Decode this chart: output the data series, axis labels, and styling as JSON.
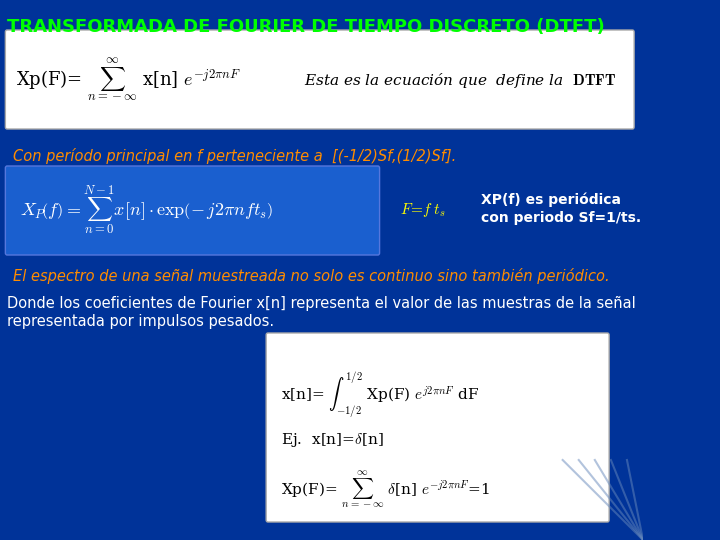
{
  "title": "TRANSFORMADA DE FOURIER DE TIEMPO DISCRETO (DTFT)",
  "title_color": "#00FF00",
  "title_fontsize": 13,
  "bg_color": "#003399",
  "box1_bg": "#FFFFFF",
  "box2_bg": "#1a5fcf",
  "orange_text_color": "#FF8C00",
  "white_text_color": "#FFFFFF",
  "yellow_text_color": "#FFFF00",
  "eq1_text": "Xp(F)=   $\\sum_{n=-\\infty}^{\\infty}$  x[n] $e^{-j2\\pi nF}$       Esta es la ecuación que  define la  DTFT",
  "line_period": "Con período principal en f perteneciente a  [(-1/2)Sf,(1/2)Sf].",
  "eq2_label": "F= f ts",
  "eq2_right1": "XP(f) es periódica",
  "eq2_right2": "con periodo Sf=1/ts.",
  "line_espectro": "El espectro de una señal muestreada no solo es continuo sino también periódico.",
  "line_donde": "Donde los coeficientes de Fourier x[n] representa el valor de las muestras de la señal",
  "line_donde2": "representada por impulsos pesados.",
  "diagonal_color": "#8888cc"
}
